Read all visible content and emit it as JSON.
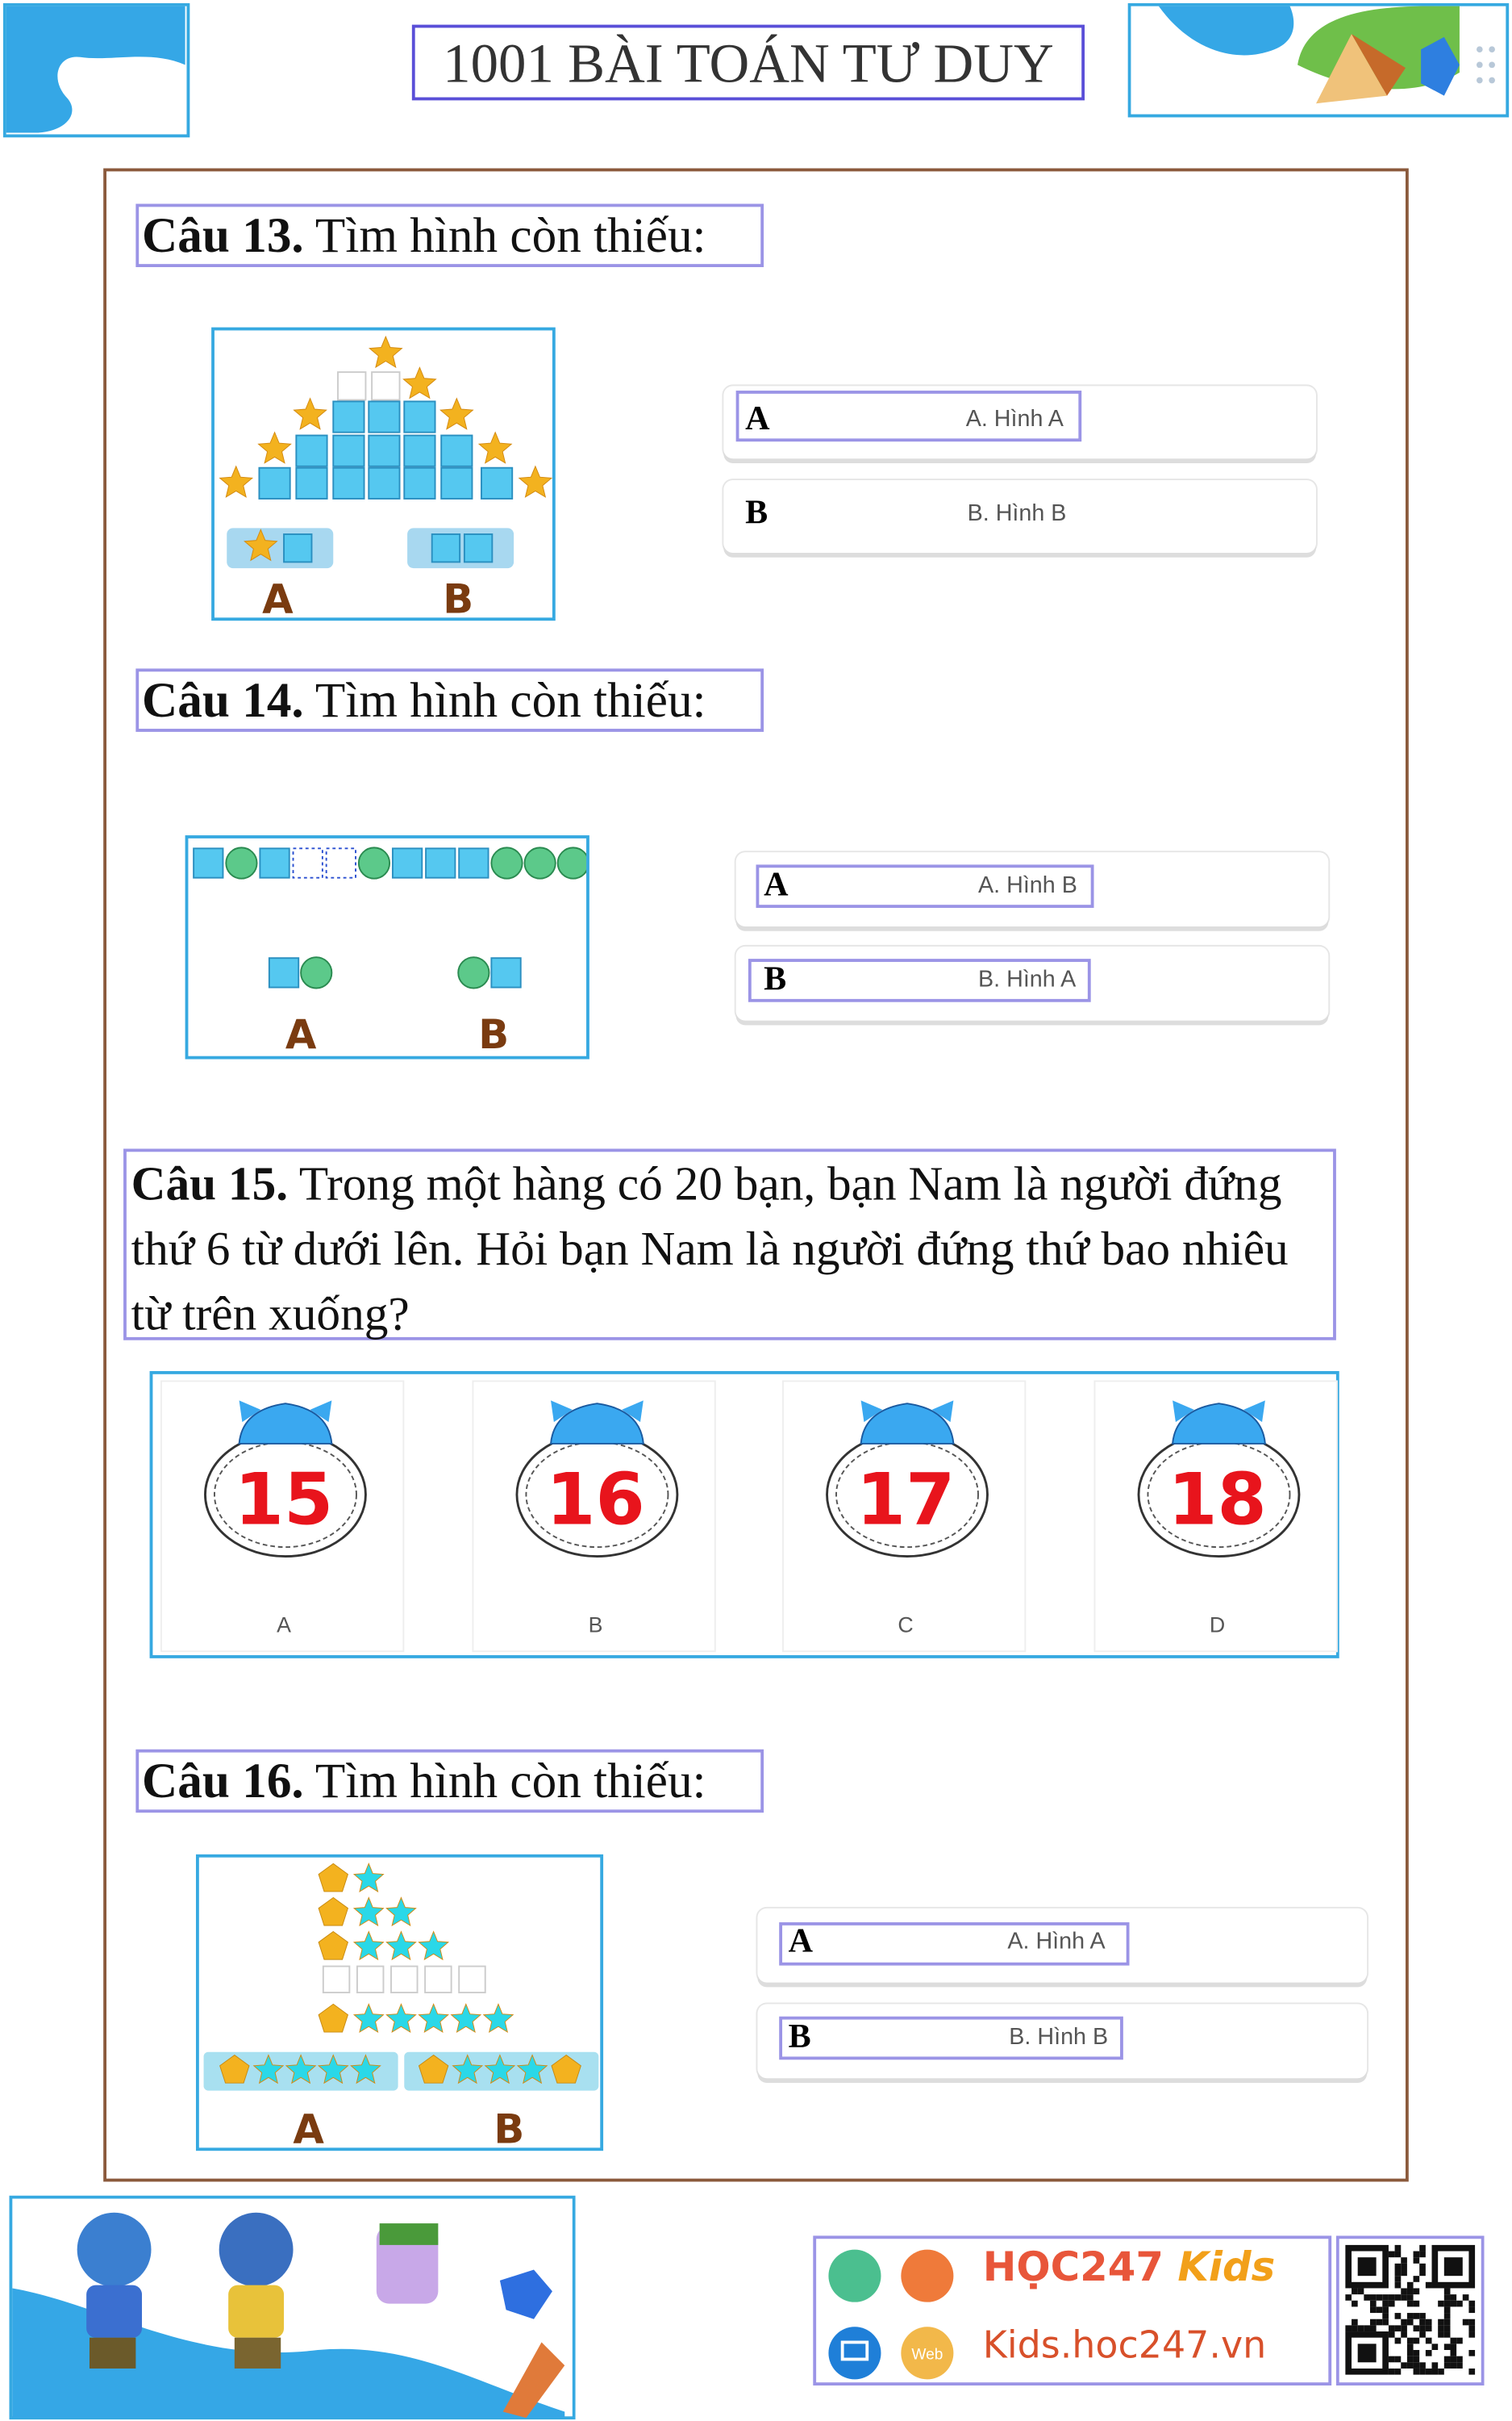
{
  "header": {
    "title": "1001 BÀI TOÁN TƯ DUY"
  },
  "questions": [
    {
      "label": "Câu 13.",
      "text": "Tìm hình còn thiếu:",
      "figure_labels": [
        "A",
        "B"
      ],
      "options": [
        {
          "letter": "A",
          "text": "A. Hình A"
        },
        {
          "letter": "B",
          "text": "B. Hình B"
        }
      ]
    },
    {
      "label": "Câu 14.",
      "text": "Tìm hình còn thiếu:",
      "figure_labels": [
        "A",
        "B"
      ],
      "options": [
        {
          "letter": "A",
          "text": "A. Hình B"
        },
        {
          "letter": "B",
          "text": "B. Hình A"
        }
      ]
    },
    {
      "label": "Câu 15.",
      "text": "Trong một hàng có 20 bạn, bạn Nam là người đứng thứ 6 từ dưới lên. Hỏi bạn Nam là người đứng thứ bao nhiêu từ trên xuống?",
      "answers": [
        {
          "number": "15",
          "letter": "A"
        },
        {
          "number": "16",
          "letter": "B"
        },
        {
          "number": "17",
          "letter": "C"
        },
        {
          "number": "18",
          "letter": "D"
        }
      ]
    },
    {
      "label": "Câu 16.",
      "text": "Tìm hình còn thiếu:",
      "figure_labels": [
        "A",
        "B"
      ],
      "options": [
        {
          "letter": "A",
          "text": "A. Hình A"
        },
        {
          "letter": "B",
          "text": "B. Hình B"
        }
      ]
    }
  ],
  "footer": {
    "brand": "HỌC247",
    "brand_kids": "Kids",
    "web_badge": "Web",
    "url": "Kids.hoc247.vn"
  }
}
